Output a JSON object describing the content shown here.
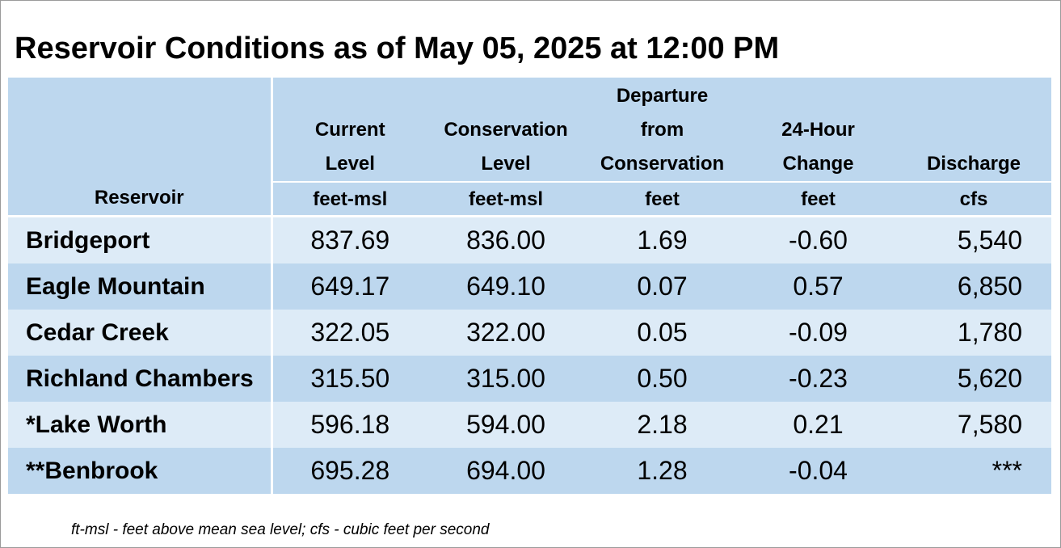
{
  "title": "Reservoir Conditions as of May 05, 2025 at 12:00 PM",
  "columns": [
    {
      "label_lines": [
        "Reservoir"
      ],
      "unit": ""
    },
    {
      "label_lines": [
        "Current",
        "Level"
      ],
      "unit": "feet-msl"
    },
    {
      "label_lines": [
        "Conservation",
        "Level"
      ],
      "unit": "feet-msl"
    },
    {
      "label_lines": [
        "Departure",
        "from",
        "Conservation"
      ],
      "unit": "feet"
    },
    {
      "label_lines": [
        "24-Hour",
        "Change"
      ],
      "unit": "feet"
    },
    {
      "label_lines": [
        "Discharge"
      ],
      "unit": "cfs"
    }
  ],
  "rows": [
    {
      "reservoir": "Bridgeport",
      "current": "837.69",
      "conservation": "836.00",
      "departure": "1.69",
      "change": "-0.60",
      "discharge": "5,540"
    },
    {
      "reservoir": "Eagle Mountain",
      "current": "649.17",
      "conservation": "649.10",
      "departure": "0.07",
      "change": "0.57",
      "discharge": "6,850"
    },
    {
      "reservoir": "Cedar Creek",
      "current": "322.05",
      "conservation": "322.00",
      "departure": "0.05",
      "change": "-0.09",
      "discharge": "1,780"
    },
    {
      "reservoir": "Richland Chambers",
      "current": "315.50",
      "conservation": "315.00",
      "departure": "0.50",
      "change": "-0.23",
      "discharge": "5,620"
    },
    {
      "reservoir": "*Lake Worth",
      "current": "596.18",
      "conservation": "594.00",
      "departure": "2.18",
      "change": "0.21",
      "discharge": "7,580"
    },
    {
      "reservoir": "**Benbrook",
      "current": "695.28",
      "conservation": "694.00",
      "departure": "1.28",
      "change": "-0.04",
      "discharge": "***"
    }
  ],
  "footnote": "ft-msl - feet above mean sea level; cfs - cubic feet per second",
  "colors": {
    "header_bg": "#bdd7ee",
    "row_light": "#ddebf7",
    "row_dark": "#bdd7ee",
    "separator": "#ffffff"
  }
}
